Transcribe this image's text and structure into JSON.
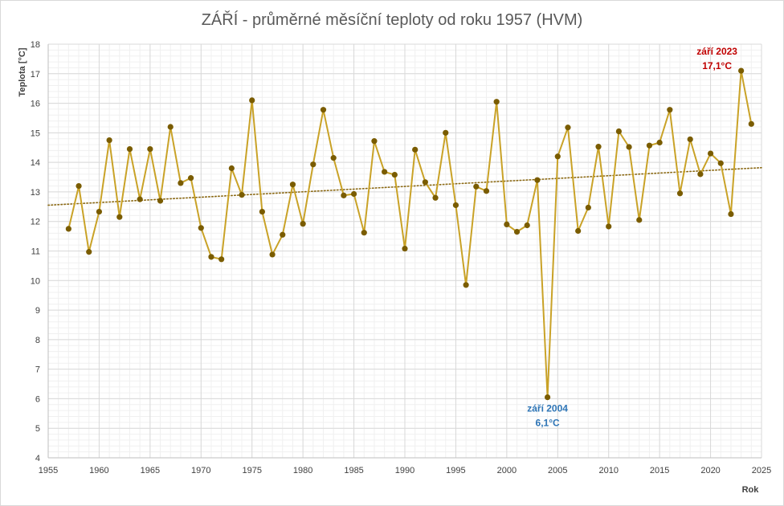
{
  "chart_data": {
    "type": "line",
    "title": "ZÁŘÍ - průměrné měsíční teploty od roku 1957 (HVM)",
    "xlabel": "Rok",
    "ylabel": "Teplota [°C]",
    "xlim": [
      1955,
      2025
    ],
    "ylim": [
      4,
      18
    ],
    "x_ticks": [
      "1955",
      "1960",
      "1965",
      "1970",
      "1975",
      "1980",
      "1985",
      "1990",
      "1995",
      "2000",
      "2005",
      "2010",
      "2015",
      "2020",
      "2025"
    ],
    "y_ticks": [
      "4",
      "5",
      "6",
      "7",
      "8",
      "9",
      "10",
      "11",
      "12",
      "13",
      "14",
      "15",
      "16",
      "17",
      "18"
    ],
    "grid": true,
    "legend": "none",
    "colors": {
      "line": "#c9a227",
      "marker": "#7a5c00",
      "trend": "#8b6914",
      "anno_max": "#c00000",
      "anno_min": "#2e75b6"
    },
    "series": [
      {
        "x": [
          1957,
          1958,
          1959,
          1960,
          1961,
          1962,
          1963,
          1964,
          1965,
          1966,
          1967,
          1968,
          1969,
          1970,
          1971,
          1972,
          1973,
          1974,
          1975,
          1976,
          1977,
          1978,
          1979,
          1980,
          1981,
          1982,
          1983,
          1984,
          1985,
          1986,
          1987,
          1988,
          1989,
          1990,
          1991,
          1992,
          1993,
          1994,
          1995,
          1996,
          1997,
          1998,
          1999,
          2000,
          2001,
          2002,
          2003,
          2004,
          2005,
          2006,
          2007,
          2008,
          2009,
          2010,
          2011,
          2012,
          2013,
          2014,
          2015,
          2016,
          2017,
          2018,
          2019,
          2020,
          2021,
          2022,
          2023,
          2024
        ],
        "values": [
          11.75,
          13.2,
          10.97,
          12.33,
          14.75,
          12.15,
          14.45,
          12.75,
          14.45,
          12.7,
          15.2,
          13.3,
          13.47,
          11.78,
          10.8,
          10.72,
          13.8,
          12.9,
          16.1,
          12.33,
          10.88,
          11.55,
          13.25,
          11.92,
          13.93,
          15.78,
          14.15,
          12.88,
          12.93,
          11.62,
          14.72,
          13.68,
          13.58,
          11.08,
          14.43,
          13.33,
          12.8,
          15.0,
          12.55,
          9.85,
          13.18,
          13.03,
          16.05,
          11.9,
          11.65,
          11.87,
          13.4,
          6.05,
          14.2,
          15.18,
          11.68,
          12.47,
          14.53,
          11.83,
          15.05,
          14.52,
          12.05,
          14.57,
          14.67,
          15.78,
          12.95,
          14.78,
          13.6,
          14.3,
          13.97,
          12.25,
          17.1,
          15.3
        ]
      }
    ],
    "trendline": {
      "type": "linear",
      "y_at_xmin": 12.55,
      "y_at_xmax": 13.82
    },
    "annotations": [
      {
        "line1": "září 2023",
        "line2": "17,1°C",
        "x": 2023,
        "y": 17.1,
        "kind": "max"
      },
      {
        "line1": "září 2004",
        "line2": "6,1°C",
        "x": 2004,
        "y": 6.05,
        "kind": "min"
      }
    ]
  }
}
